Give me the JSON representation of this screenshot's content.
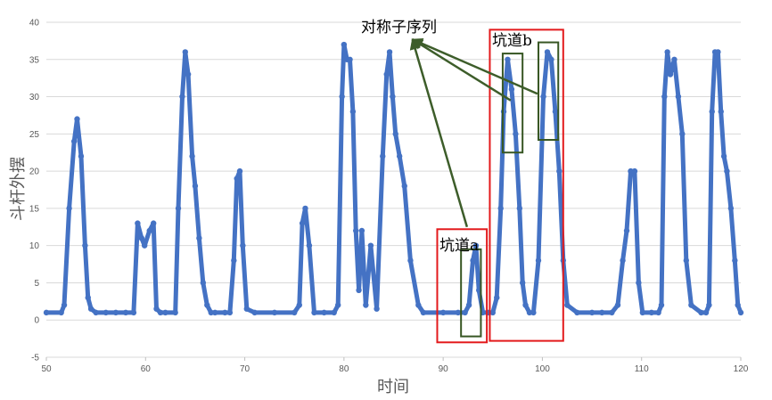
{
  "chart_data": {
    "type": "scatter",
    "xlabel": "时间",
    "ylabel": "斗杆外摆",
    "xlim": [
      50,
      120
    ],
    "ylim": [
      -5,
      40
    ],
    "x_ticks": [
      "50",
      "60",
      "70",
      "80",
      "90",
      "100",
      "110",
      "120"
    ],
    "y_ticks": [
      "-5",
      "0",
      "5",
      "10",
      "15",
      "20",
      "25",
      "30",
      "35",
      "40"
    ],
    "grid": "horizontal",
    "colors": {
      "series": "#4472c4",
      "highlight": "#e31a1c",
      "subseq": "#375623",
      "arrow": "#3d5d2a"
    },
    "series": [
      {
        "x": [
          50,
          51.5,
          51.8,
          52.3,
          52.8,
          53.1,
          53.5,
          53.9,
          54.2,
          54.5,
          55,
          56,
          57,
          58,
          58.8,
          59.2,
          59.6,
          59.9,
          60.4,
          60.8,
          61.1,
          61.5,
          62,
          63,
          63.3,
          63.7,
          64.0,
          64.3,
          64.7,
          65.0,
          65.4,
          65.8,
          66.2,
          66.6,
          67,
          68,
          68.5,
          68.9,
          69.2,
          69.5,
          69.8,
          70.2,
          71,
          73,
          75,
          75.5,
          75.8,
          76.1,
          76.5,
          77,
          78,
          79,
          79.4,
          79.8,
          80.0,
          80.3,
          80.6,
          80.9,
          81.2,
          81.5,
          81.8,
          82.2,
          82.7,
          83.3,
          83.9,
          84.3,
          84.6,
          84.9,
          85.2,
          85.6,
          86.1,
          86.7,
          87.5,
          88,
          90,
          91.5,
          92.2,
          92.6,
          93.0,
          93.3,
          93.6,
          94.0,
          94.5,
          95.0,
          95.4,
          95.8,
          96.1,
          96.5,
          96.9,
          97.3,
          97.7,
          98.0,
          98.3,
          98.7,
          99.1,
          99.6,
          100.1,
          100.5,
          100.9,
          101.3,
          101.7,
          102.1,
          102.5,
          103.5,
          105,
          106,
          107,
          107.6,
          108.1,
          108.5,
          108.9,
          109.3,
          109.7,
          110.1,
          111,
          111.7,
          112.0,
          112.3,
          112.6,
          112.9,
          113.3,
          113.7,
          114.1,
          114.5,
          115,
          116,
          116.5,
          116.8,
          117.1,
          117.4,
          117.7,
          118.0,
          118.3,
          118.6,
          119.0,
          119.4,
          119.7,
          120
        ],
        "y": [
          1,
          1,
          2,
          15,
          24,
          27,
          22,
          10,
          3,
          1.5,
          1,
          1,
          1,
          1,
          1,
          13,
          11,
          10,
          12,
          13,
          1.5,
          1,
          1,
          1,
          15,
          30,
          36,
          33,
          22,
          18,
          11,
          5,
          2,
          1,
          1,
          1,
          1,
          8,
          19,
          20,
          10,
          1.5,
          1,
          1,
          1,
          2,
          13,
          15,
          10,
          1,
          1,
          1,
          2,
          30,
          37,
          35,
          35,
          28,
          12,
          4,
          12,
          2,
          10,
          1.5,
          22,
          33,
          36,
          30,
          25,
          22,
          18,
          8,
          2,
          1,
          1,
          1,
          1,
          2,
          8,
          10,
          4,
          1,
          1,
          1,
          3,
          15,
          28,
          35,
          31,
          25,
          15,
          5,
          2,
          1,
          1,
          8,
          30,
          36,
          35,
          28,
          20,
          8,
          2,
          1,
          1,
          1,
          1,
          2,
          8,
          12,
          20,
          20,
          5,
          1,
          1,
          1,
          2,
          30,
          36,
          33,
          35,
          30,
          25,
          8,
          2,
          1,
          1,
          2,
          28,
          36,
          36,
          28,
          22,
          20,
          15,
          8,
          2,
          1
        ]
      }
    ],
    "annotations": [
      {
        "label": "对称子序列"
      },
      {
        "label": "坑道a"
      },
      {
        "label": "坑道b"
      }
    ]
  }
}
